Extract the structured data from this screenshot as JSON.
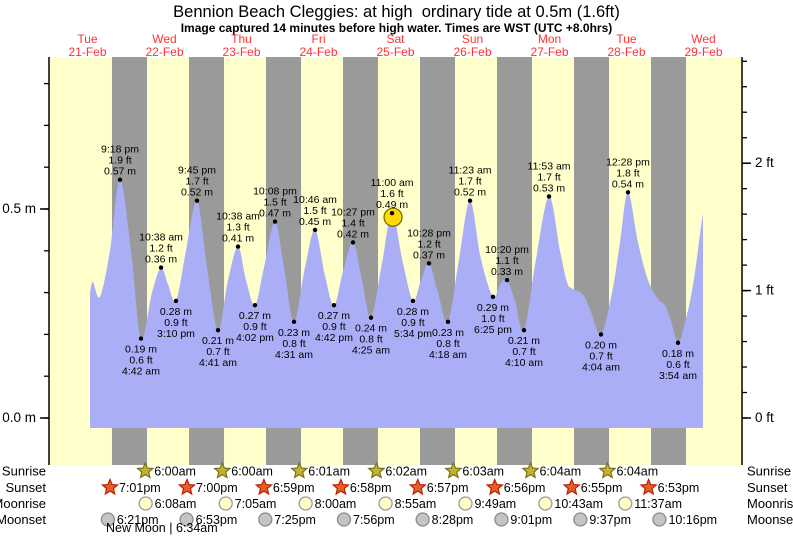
{
  "page": {
    "title": "Bennion Beach Cleggies: at high  ordinary tide at 0.5m (1.6ft)",
    "subtitle": "Image captured 14 minutes before high water. Times are WST (UTC +8.0hrs)"
  },
  "colors": {
    "plot_bg": "#FFFFCC",
    "night_band": "#9A9A9A",
    "tide_area": "#A9AEF6",
    "day_label": "#FF3333",
    "axis": "#000000",
    "annotation_text": "#000000",
    "sunrise_star_fill": "#C2B236",
    "sunrise_star_stroke": "#7A7110",
    "sunset_star_fill": "#E2612B",
    "sunset_star_stroke": "#BF1E00",
    "moonrise_fill": "#FFFFCC",
    "moonrise_stroke": "#9A9A9A",
    "moonset_fill": "#C4C4C4",
    "moonset_stroke": "#8A8A8A",
    "current_marker_fill": "#FFD900",
    "current_marker_stroke": "#6B6B00"
  },
  "chart_data": {
    "type": "area",
    "title": "Bennion Beach Cleggies: at high  ordinary tide at 0.5m (1.6ft)",
    "subtitle": "Image captured 14 minutes before high water. Times are WST (UTC +8.0hrs)",
    "x_axis": {
      "days": [
        {
          "weekday": "Tue",
          "date": "21-Feb"
        },
        {
          "weekday": "Wed",
          "date": "22-Feb"
        },
        {
          "weekday": "Thu",
          "date": "23-Feb"
        },
        {
          "weekday": "Fri",
          "date": "24-Feb"
        },
        {
          "weekday": "Sat",
          "date": "25-Feb"
        },
        {
          "weekday": "Sun",
          "date": "26-Feb"
        },
        {
          "weekday": "Mon",
          "date": "27-Feb"
        },
        {
          "weekday": "Tue",
          "date": "28-Feb"
        },
        {
          "weekday": "Wed",
          "date": "29-Feb"
        }
      ]
    },
    "y_axis_left": {
      "unit": "m",
      "major_ticks": [
        {
          "value": 0.5,
          "label": "0.5 m"
        },
        {
          "value": 0.0,
          "label": "0.0 m"
        }
      ],
      "minor_step_m": 0.1,
      "minor_max_m": 0.8
    },
    "y_axis_right": {
      "unit": "ft",
      "major_ticks": [
        {
          "value": 2,
          "label": "2 ft"
        },
        {
          "value": 1,
          "label": "1 ft"
        },
        {
          "value": 0,
          "label": "0 ft"
        }
      ],
      "minor_step_ft": 0.2,
      "minor_max_ft": 2.8
    },
    "night_bands": [
      [
        0.818,
        1.273
      ],
      [
        1.818,
        2.273
      ],
      [
        2.818,
        3.273
      ],
      [
        3.818,
        4.273
      ],
      [
        4.818,
        5.273
      ],
      [
        5.818,
        6.273
      ],
      [
        6.818,
        7.273
      ],
      [
        7.818,
        8.273
      ]
    ],
    "area_base_m": -0.024,
    "curve": [
      [
        0.532,
        0.3
      ],
      [
        0.571,
        0.325
      ],
      [
        0.662,
        0.29
      ],
      [
        0.792,
        0.4
      ],
      [
        0.922,
        0.57
      ],
      [
        1.065,
        0.4
      ],
      [
        1.195,
        0.19
      ],
      [
        1.338,
        0.3
      ],
      [
        1.455,
        0.36
      ],
      [
        1.545,
        0.32
      ],
      [
        1.649,
        0.28
      ],
      [
        1.779,
        0.4
      ],
      [
        1.922,
        0.52
      ],
      [
        2.052,
        0.36
      ],
      [
        2.195,
        0.21
      ],
      [
        2.325,
        0.33
      ],
      [
        2.455,
        0.41
      ],
      [
        2.558,
        0.33
      ],
      [
        2.675,
        0.27
      ],
      [
        2.792,
        0.36
      ],
      [
        2.935,
        0.47
      ],
      [
        3.052,
        0.36
      ],
      [
        3.182,
        0.23
      ],
      [
        3.325,
        0.36
      ],
      [
        3.455,
        0.45
      ],
      [
        3.584,
        0.34
      ],
      [
        3.701,
        0.27
      ],
      [
        3.818,
        0.35
      ],
      [
        3.948,
        0.42
      ],
      [
        4.065,
        0.33
      ],
      [
        4.182,
        0.24
      ],
      [
        4.325,
        0.37
      ],
      [
        4.455,
        0.49
      ],
      [
        4.597,
        0.37
      ],
      [
        4.727,
        0.28
      ],
      [
        4.831,
        0.33
      ],
      [
        4.935,
        0.37
      ],
      [
        5.052,
        0.3
      ],
      [
        5.182,
        0.23
      ],
      [
        5.325,
        0.38
      ],
      [
        5.468,
        0.52
      ],
      [
        5.61,
        0.38
      ],
      [
        5.766,
        0.29
      ],
      [
        5.857,
        0.32
      ],
      [
        5.948,
        0.33
      ],
      [
        6.052,
        0.28
      ],
      [
        6.169,
        0.21
      ],
      [
        6.325,
        0.38
      ],
      [
        6.494,
        0.53
      ],
      [
        6.636,
        0.4
      ],
      [
        6.727,
        0.325
      ],
      [
        6.792,
        0.31
      ],
      [
        6.935,
        0.295
      ],
      [
        7.026,
        0.26
      ],
      [
        7.169,
        0.2
      ],
      [
        7.312,
        0.3
      ],
      [
        7.416,
        0.42
      ],
      [
        7.519,
        0.54
      ],
      [
        7.649,
        0.42
      ],
      [
        7.779,
        0.33
      ],
      [
        7.909,
        0.285
      ],
      [
        8.0,
        0.27
      ],
      [
        8.065,
        0.24
      ],
      [
        8.169,
        0.18
      ],
      [
        8.247,
        0.22
      ],
      [
        8.325,
        0.28
      ],
      [
        8.39,
        0.35
      ],
      [
        8.455,
        0.44
      ],
      [
        8.494,
        0.49
      ]
    ],
    "extremes": [
      {
        "type": "high",
        "d": 0.922,
        "height_m": 0.57,
        "lines": [
          "9:18 pm",
          "1.9 ft",
          "0.57 m"
        ],
        "highlight": false
      },
      {
        "type": "low",
        "d": 1.195,
        "height_m": 0.19,
        "lines": [
          "0.19 m",
          "0.6 ft",
          "4:42 am"
        ],
        "highlight": false
      },
      {
        "type": "high",
        "d": 1.455,
        "height_m": 0.36,
        "lines": [
          "10:38 am",
          "1.2 ft",
          "0.36 m"
        ],
        "highlight": false
      },
      {
        "type": "low",
        "d": 1.649,
        "height_m": 0.28,
        "lines": [
          "0.28 m",
          "0.9 ft",
          "3:10 pm"
        ],
        "highlight": false
      },
      {
        "type": "high",
        "d": 1.922,
        "height_m": 0.52,
        "lines": [
          "9:45 pm",
          "1.7 ft",
          "0.52 m"
        ],
        "highlight": false
      },
      {
        "type": "low",
        "d": 2.195,
        "height_m": 0.21,
        "lines": [
          "0.21 m",
          "0.7 ft",
          "4:41 am"
        ],
        "highlight": false
      },
      {
        "type": "high",
        "d": 2.455,
        "height_m": 0.41,
        "lines": [
          "10:38 am",
          "1.3 ft",
          "0.41 m"
        ],
        "highlight": false
      },
      {
        "type": "low",
        "d": 2.675,
        "height_m": 0.27,
        "lines": [
          "0.27 m",
          "0.9 ft",
          "4:02 pm"
        ],
        "highlight": false
      },
      {
        "type": "high",
        "d": 2.935,
        "height_m": 0.47,
        "lines": [
          "10:08 pm",
          "1.5 ft",
          "0.47 m"
        ],
        "highlight": false
      },
      {
        "type": "low",
        "d": 3.182,
        "height_m": 0.23,
        "lines": [
          "0.23 m",
          "0.8 ft",
          "4:31 am"
        ],
        "highlight": false
      },
      {
        "type": "high",
        "d": 3.455,
        "height_m": 0.45,
        "lines": [
          "10:46 am",
          "1.5 ft",
          "0.45 m"
        ],
        "highlight": false
      },
      {
        "type": "low",
        "d": 3.701,
        "height_m": 0.27,
        "lines": [
          "0.27 m",
          "0.9 ft",
          "4:42 pm"
        ],
        "highlight": false
      },
      {
        "type": "high",
        "d": 3.948,
        "height_m": 0.42,
        "lines": [
          "10:27 pm",
          "1.4 ft",
          "0.42 m"
        ],
        "highlight": false
      },
      {
        "type": "low",
        "d": 4.182,
        "height_m": 0.24,
        "lines": [
          "0.24 m",
          "0.8 ft",
          "4:25 am"
        ],
        "highlight": false
      },
      {
        "type": "high",
        "d": 4.455,
        "height_m": 0.49,
        "lines": [
          "11:00 am",
          "1.6 ft",
          "0.49 m"
        ],
        "highlight": true
      },
      {
        "type": "low",
        "d": 4.727,
        "height_m": 0.28,
        "lines": [
          "0.28 m",
          "0.9 ft",
          "5:34 pm"
        ],
        "highlight": false
      },
      {
        "type": "high",
        "d": 4.935,
        "height_m": 0.37,
        "lines": [
          "10:28 pm",
          "1.2 ft",
          "0.37 m"
        ],
        "highlight": false
      },
      {
        "type": "low",
        "d": 5.182,
        "height_m": 0.23,
        "lines": [
          "0.23 m",
          "0.8 ft",
          "4:18 am"
        ],
        "highlight": false
      },
      {
        "type": "high",
        "d": 5.468,
        "height_m": 0.52,
        "lines": [
          "11:23 am",
          "1.7 ft",
          "0.52 m"
        ],
        "highlight": false
      },
      {
        "type": "low",
        "d": 5.766,
        "height_m": 0.29,
        "lines": [
          "0.29 m",
          "1.0 ft",
          "6:25 pm"
        ],
        "highlight": false
      },
      {
        "type": "high",
        "d": 5.948,
        "height_m": 0.33,
        "lines": [
          "10:20 pm",
          "1.1 ft",
          "0.33 m"
        ],
        "highlight": false
      },
      {
        "type": "low",
        "d": 6.169,
        "height_m": 0.21,
        "lines": [
          "0.21 m",
          "0.7 ft",
          "4:10 am"
        ],
        "highlight": false
      },
      {
        "type": "high",
        "d": 6.494,
        "height_m": 0.53,
        "lines": [
          "11:53 am",
          "1.7 ft",
          "0.53 m"
        ],
        "highlight": false
      },
      {
        "type": "low",
        "d": 7.169,
        "height_m": 0.2,
        "lines": [
          "0.20 m",
          "0.7 ft",
          "4:04 am"
        ],
        "highlight": false
      },
      {
        "type": "high",
        "d": 7.519,
        "height_m": 0.54,
        "lines": [
          "12:28 pm",
          "1.8 ft",
          "0.54 m"
        ],
        "highlight": false
      },
      {
        "type": "low",
        "d": 8.169,
        "height_m": 0.18,
        "lines": [
          "0.18 m",
          "0.6 ft",
          "3:54 am"
        ],
        "highlight": false
      }
    ],
    "astro": {
      "rows": [
        {
          "id": "sunrise",
          "label": "Sunrise",
          "icon": "sunrise-star",
          "entries": [
            {
              "day": 1,
              "time": "6:00am"
            },
            {
              "day": 2,
              "time": "6:00am"
            },
            {
              "day": 3,
              "time": "6:01am"
            },
            {
              "day": 4,
              "time": "6:02am"
            },
            {
              "day": 5,
              "time": "6:03am"
            },
            {
              "day": 6,
              "time": "6:04am"
            },
            {
              "day": 7,
              "time": "6:04am"
            }
          ]
        },
        {
          "id": "sunset",
          "label": "Sunset",
          "icon": "sunset-star",
          "entries": [
            {
              "day": 0,
              "time": "7:01pm"
            },
            {
              "day": 1,
              "time": "7:00pm"
            },
            {
              "day": 2,
              "time": "6:59pm"
            },
            {
              "day": 3,
              "time": "6:58pm"
            },
            {
              "day": 4,
              "time": "6:57pm"
            },
            {
              "day": 5,
              "time": "6:56pm"
            },
            {
              "day": 6,
              "time": "6:55pm"
            },
            {
              "day": 7,
              "time": "6:53pm"
            }
          ]
        },
        {
          "id": "moonrise",
          "label": "Moonrise",
          "icon": "moonrise-circle",
          "entries": [
            {
              "day": 1,
              "time": "6:08am"
            },
            {
              "day": 2,
              "time": "7:05am"
            },
            {
              "day": 3,
              "time": "8:00am"
            },
            {
              "day": 4,
              "time": "8:55am"
            },
            {
              "day": 5,
              "time": "9:49am"
            },
            {
              "day": 6,
              "time": "10:43am"
            },
            {
              "day": 7,
              "time": "11:37am"
            }
          ]
        },
        {
          "id": "moonset",
          "label": "Moonset",
          "icon": "moonset-circle",
          "entries": [
            {
              "day": 0,
              "time": "6:21pm"
            },
            {
              "day": 1,
              "time": "6:53pm"
            },
            {
              "day": 2,
              "time": "7:25pm"
            },
            {
              "day": 3,
              "time": "7:56pm"
            },
            {
              "day": 4,
              "time": "8:28pm"
            },
            {
              "day": 5,
              "time": "9:01pm"
            },
            {
              "day": 6,
              "time": "9:37pm"
            },
            {
              "day": 7,
              "time": "10:16pm"
            }
          ]
        }
      ],
      "moon_phase": "New Moon | 6:34am"
    }
  }
}
